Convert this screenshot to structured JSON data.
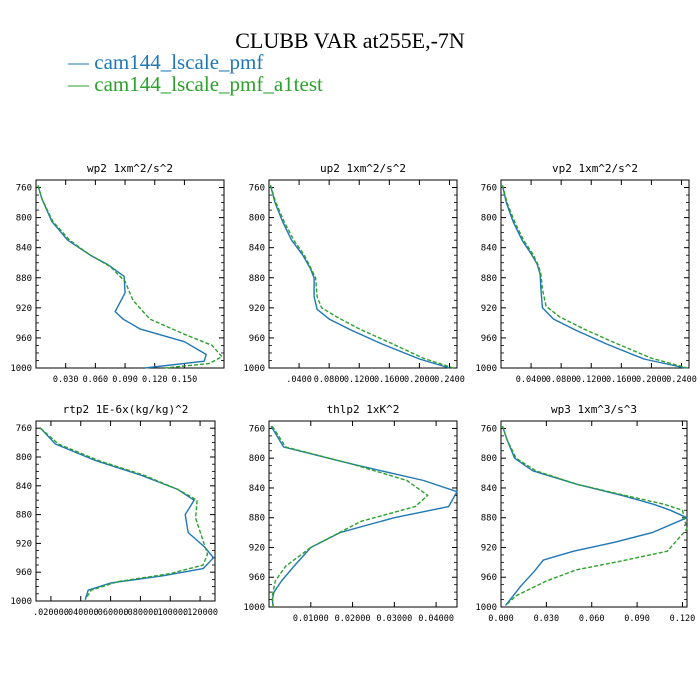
{
  "title": "CLUBB VAR at255E,-7N",
  "legend": [
    {
      "label": "cam144_lscale_pmf",
      "color": "#1f77b4",
      "dash": "solid"
    },
    {
      "label": "cam144_lscale_pmf_a1test",
      "color": "#2ca02c",
      "dash": "dashed"
    }
  ],
  "chart_data": [
    {
      "type": "line",
      "title": "wp2  1xm^2/s^2",
      "ylim": [
        1000,
        750
      ],
      "xlim": [
        0,
        0.19
      ],
      "yticks": [
        "760",
        "800",
        "840",
        "880",
        "920",
        "960",
        "1000"
      ],
      "xticks": [
        "0.030",
        "0.060",
        "0.090",
        "0.120",
        "0.150"
      ],
      "series": [
        {
          "name": "cam144_lscale_pmf",
          "x": [
            0.002,
            0.006,
            0.016,
            0.032,
            0.055,
            0.072,
            0.089,
            0.09,
            0.08,
            0.088,
            0.105,
            0.15,
            0.172,
            0.17,
            0.11
          ],
          "y": [
            757,
            775,
            805,
            830,
            850,
            862,
            878,
            900,
            925,
            935,
            948,
            965,
            982,
            991,
            1000
          ]
        },
        {
          "name": "cam144_lscale_pmf_a1test",
          "x": [
            0.002,
            0.006,
            0.017,
            0.034,
            0.055,
            0.075,
            0.09,
            0.098,
            0.115,
            0.15,
            0.178,
            0.188,
            0.175,
            0.13
          ],
          "y": [
            757,
            775,
            805,
            830,
            850,
            865,
            885,
            910,
            935,
            955,
            970,
            985,
            994,
            1000
          ]
        }
      ]
    },
    {
      "type": "line",
      "title": "up2  1xm^2/s^2",
      "ylim": [
        1000,
        750
      ],
      "xlim": [
        0,
        0.25
      ],
      "yticks": [
        "760",
        "800",
        "840",
        "880",
        "920",
        "960",
        "1000"
      ],
      "xticks": [
        ".0400",
        "0.0800",
        "0.1200",
        "0.1600",
        "0.2000",
        "0.2400"
      ],
      "series": [
        {
          "name": "cam144_lscale_pmf",
          "x": [
            0.002,
            0.008,
            0.018,
            0.03,
            0.045,
            0.055,
            0.06,
            0.06,
            0.064,
            0.08,
            0.11,
            0.15,
            0.2,
            0.24
          ],
          "y": [
            757,
            780,
            805,
            830,
            850,
            868,
            880,
            905,
            922,
            935,
            950,
            968,
            988,
            1000
          ]
        },
        {
          "name": "cam144_lscale_pmf_a1test",
          "x": [
            0.002,
            0.009,
            0.02,
            0.033,
            0.047,
            0.056,
            0.062,
            0.064,
            0.07,
            0.09,
            0.12,
            0.16,
            0.205,
            0.245
          ],
          "y": [
            757,
            780,
            805,
            830,
            850,
            868,
            880,
            905,
            920,
            932,
            948,
            966,
            987,
            1000
          ]
        }
      ]
    },
    {
      "type": "line",
      "title": "vp2  1xm^2/s^2",
      "ylim": [
        1000,
        750
      ],
      "xlim": [
        0,
        0.25
      ],
      "yticks": [
        "760",
        "800",
        "840",
        "880",
        "920",
        "960",
        "1000"
      ],
      "xticks": [
        "0.0400",
        "0.0800",
        "0.1200",
        "0.1600",
        "0.2000",
        "0.2400"
      ],
      "series": [
        {
          "name": "cam144_lscale_pmf",
          "x": [
            0.002,
            0.007,
            0.016,
            0.028,
            0.04,
            0.048,
            0.052,
            0.053,
            0.055,
            0.07,
            0.1,
            0.14,
            0.19,
            0.245
          ],
          "y": [
            757,
            780,
            805,
            830,
            848,
            862,
            875,
            895,
            920,
            935,
            950,
            968,
            988,
            1000
          ]
        },
        {
          "name": "cam144_lscale_pmf_a1test",
          "x": [
            0.002,
            0.008,
            0.018,
            0.03,
            0.042,
            0.049,
            0.053,
            0.055,
            0.06,
            0.078,
            0.11,
            0.15,
            0.2,
            0.248
          ],
          "y": [
            757,
            780,
            805,
            830,
            848,
            862,
            875,
            895,
            918,
            932,
            948,
            966,
            987,
            1000
          ]
        }
      ]
    },
    {
      "type": "line",
      "title": "rtp2  1E-6x(kg/kg)^2",
      "ylim": [
        1000,
        750
      ],
      "xlim": [
        0.01,
        0.13
      ],
      "yticks": [
        "760",
        "800",
        "840",
        "880",
        "920",
        "960",
        "1000"
      ],
      "xticks": [
        ".020000",
        ".040000",
        ".060000",
        ".080000",
        ".100000",
        ".120000"
      ],
      "series": [
        {
          "name": "cam144_lscale_pmf",
          "x": [
            0.013,
            0.023,
            0.05,
            0.08,
            0.105,
            0.116,
            0.11,
            0.112,
            0.123,
            0.129,
            0.122,
            0.095,
            0.06,
            0.045,
            0.043
          ],
          "y": [
            760,
            782,
            805,
            825,
            845,
            860,
            880,
            905,
            925,
            940,
            955,
            965,
            975,
            985,
            998
          ]
        },
        {
          "name": "cam144_lscale_pmf_a1test",
          "x": [
            0.013,
            0.025,
            0.052,
            0.082,
            0.105,
            0.118,
            0.117,
            0.121,
            0.125,
            0.122,
            0.1,
            0.065,
            0.047,
            0.043
          ],
          "y": [
            760,
            782,
            805,
            825,
            845,
            860,
            885,
            910,
            935,
            950,
            962,
            973,
            985,
            998
          ]
        }
      ]
    },
    {
      "type": "line",
      "title": "thlp2  1xK^2",
      "ylim": [
        1000,
        750
      ],
      "xlim": [
        0,
        0.045
      ],
      "yticks": [
        "760",
        "800",
        "840",
        "880",
        "920",
        "960",
        "1000"
      ],
      "xticks": [
        "0.01000",
        "0.02000",
        "0.03000",
        "0.04000"
      ],
      "series": [
        {
          "name": "cam144_lscale_pmf",
          "x": [
            0.0005,
            0.0035,
            0.02,
            0.037,
            0.045,
            0.043,
            0.03,
            0.017,
            0.01,
            0.006,
            0.003,
            0.0012,
            0.0008,
            0.001
          ],
          "y": [
            757,
            785,
            808,
            830,
            845,
            865,
            880,
            900,
            920,
            945,
            965,
            980,
            990,
            1000
          ]
        },
        {
          "name": "cam144_lscale_pmf_a1test",
          "x": [
            0.0008,
            0.004,
            0.02,
            0.033,
            0.038,
            0.035,
            0.022,
            0.01,
            0.004,
            0.0015,
            0.0008,
            0.001
          ],
          "y": [
            757,
            785,
            808,
            830,
            850,
            865,
            885,
            920,
            945,
            965,
            985,
            1000
          ]
        }
      ]
    },
    {
      "type": "line",
      "title": "wp3  1xm^3/s^3",
      "ylim": [
        1000,
        750
      ],
      "xlim": [
        0,
        0.123
      ],
      "yticks": [
        "760",
        "800",
        "840",
        "880",
        "920",
        "960",
        "1000"
      ],
      "xticks": [
        "0.000",
        "0.030",
        "0.060",
        "0.090",
        "0.120"
      ],
      "series": [
        {
          "name": "cam144_lscale_pmf",
          "x": [
            0.001,
            0.004,
            0.009,
            0.021,
            0.05,
            0.08,
            0.101,
            0.112,
            0.123,
            0.1,
            0.075,
            0.048,
            0.028,
            0.022,
            0.013,
            0.003
          ],
          "y": [
            757,
            775,
            800,
            817,
            835,
            850,
            862,
            870,
            880,
            900,
            913,
            925,
            937,
            952,
            972,
            998
          ]
        },
        {
          "name": "cam144_lscale_pmf_a1test",
          "x": [
            0.001,
            0.004,
            0.01,
            0.023,
            0.05,
            0.082,
            0.108,
            0.12,
            0.121,
            0.123,
            0.11,
            0.08,
            0.05,
            0.03,
            0.01,
            0.003
          ],
          "y": [
            757,
            775,
            800,
            817,
            835,
            850,
            862,
            870,
            880,
            895,
            925,
            938,
            950,
            965,
            985,
            998
          ]
        }
      ]
    }
  ]
}
